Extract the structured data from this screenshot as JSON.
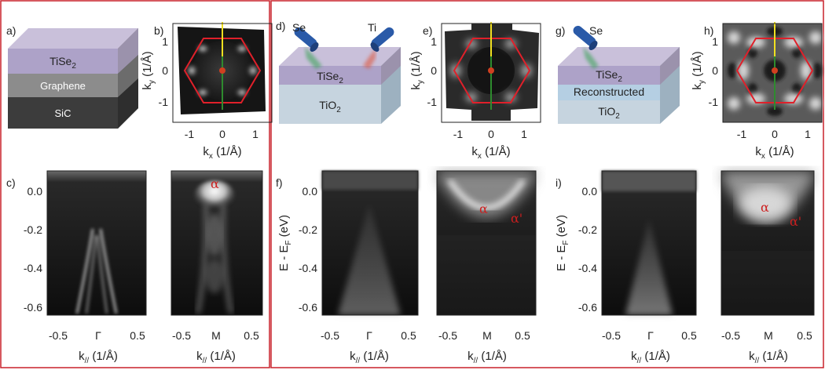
{
  "panel_labels": [
    "a)",
    "b)",
    "c)",
    "d)",
    "e)",
    "f)",
    "g)",
    "h)",
    "i)"
  ],
  "layers": {
    "a": [
      "TiSe",
      "Graphene",
      "SiC"
    ],
    "d": [
      "TiSe",
      "TiO"
    ],
    "g": [
      "TiSe",
      "Reconstructed",
      "TiO"
    ],
    "subscripts": {
      "tise": "2",
      "tio": "2"
    }
  },
  "sources": {
    "se": "Se",
    "ti": "Ti"
  },
  "fs_axes": {
    "xlabel_main": "k",
    "xlabel_sub": "x",
    "xlabel_unit": " (1/Å)",
    "ylabel_main": "k",
    "ylabel_sub": "y",
    "ylabel_unit": " (1/Å)",
    "xticks": [
      "-1",
      "0",
      "1"
    ],
    "yticks": [
      "1",
      "0",
      "-1"
    ]
  },
  "arpes_axes": {
    "ylabel_main": "E - E",
    "ylabel_sub": "F",
    "ylabel_unit": " (eV)",
    "yticks": [
      "0.0",
      "-0.2",
      "-0.4",
      "-0.6"
    ],
    "xlabel_main": "k",
    "xlabel_sub": "//",
    "xlabel_unit": " (1/Å)",
    "xticks_gamma": [
      "-0.5",
      "Γ",
      "0.5"
    ],
    "xticks_m": [
      "-0.5",
      "M",
      "0.5"
    ]
  },
  "bands": {
    "alpha": "α",
    "alpha_prime": "α'"
  },
  "colors": {
    "frame": "#c8202a",
    "hexagon": "#e0202a",
    "cut_line": "#f0e020",
    "k_line": "#2e8b2e",
    "gamma_dot": "#d04020"
  }
}
